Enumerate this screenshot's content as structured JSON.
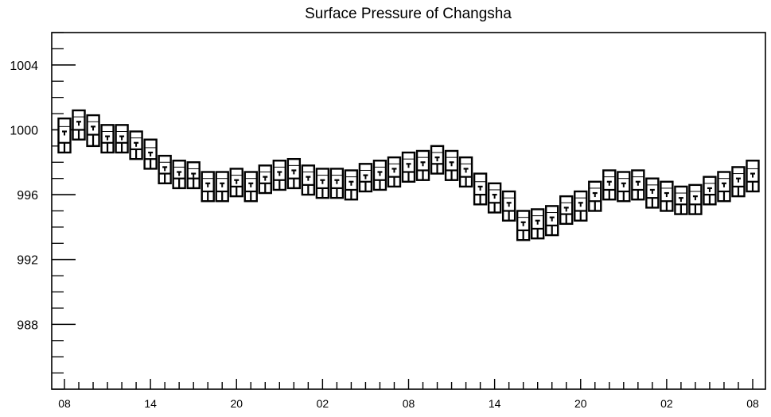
{
  "chart_data": {
    "type": "box",
    "title": "Surface Pressure of Changsha",
    "xlabel": "",
    "ylabel": "",
    "ylim": [
      984,
      1006
    ],
    "y_ticks": [
      988,
      992,
      996,
      1000,
      1004
    ],
    "x_tick_labels": [
      "08",
      "14",
      "20",
      "02",
      "08",
      "14",
      "20",
      "02",
      "08"
    ],
    "grid": false,
    "legend": "none",
    "colors": {
      "stroke": "#000000",
      "fill": "#ffffff",
      "background": "#ffffff"
    },
    "boxes": [
      {
        "x": 0,
        "min": 998.6,
        "q1": 999.2,
        "median": 999.9,
        "q3": 1000.2,
        "max": 1000.7
      },
      {
        "x": 1,
        "min": 999.4,
        "q1": 1000.0,
        "median": 1000.5,
        "q3": 1000.8,
        "max": 1001.2
      },
      {
        "x": 2,
        "min": 999.0,
        "q1": 999.7,
        "median": 1000.2,
        "q3": 1000.5,
        "max": 1000.9
      },
      {
        "x": 3,
        "min": 998.6,
        "q1": 999.2,
        "median": 999.6,
        "q3": 999.9,
        "max": 1000.3
      },
      {
        "x": 4,
        "min": 998.6,
        "q1": 999.2,
        "median": 999.6,
        "q3": 999.9,
        "max": 1000.3
      },
      {
        "x": 5,
        "min": 998.2,
        "q1": 998.8,
        "median": 999.2,
        "q3": 999.5,
        "max": 999.9
      },
      {
        "x": 6,
        "min": 997.6,
        "q1": 998.2,
        "median": 998.6,
        "q3": 998.9,
        "max": 999.4
      },
      {
        "x": 7,
        "min": 996.7,
        "q1": 997.3,
        "median": 997.7,
        "q3": 998.0,
        "max": 998.4
      },
      {
        "x": 8,
        "min": 996.4,
        "q1": 997.0,
        "median": 997.4,
        "q3": 997.7,
        "max": 998.1
      },
      {
        "x": 9,
        "min": 996.4,
        "q1": 997.0,
        "median": 997.3,
        "q3": 997.6,
        "max": 998.0
      },
      {
        "x": 10,
        "min": 995.6,
        "q1": 996.2,
        "median": 996.7,
        "q3": 997.0,
        "max": 997.4
      },
      {
        "x": 11,
        "min": 995.6,
        "q1": 996.2,
        "median": 996.7,
        "q3": 997.0,
        "max": 997.4
      },
      {
        "x": 12,
        "min": 995.9,
        "q1": 996.5,
        "median": 996.9,
        "q3": 997.2,
        "max": 997.6
      },
      {
        "x": 13,
        "min": 995.6,
        "q1": 996.2,
        "median": 996.7,
        "q3": 997.0,
        "max": 997.4
      },
      {
        "x": 14,
        "min": 996.1,
        "q1": 996.7,
        "median": 997.1,
        "q3": 997.4,
        "max": 997.8
      },
      {
        "x": 15,
        "min": 996.3,
        "q1": 996.9,
        "median": 997.4,
        "q3": 997.7,
        "max": 998.1
      },
      {
        "x": 16,
        "min": 996.4,
        "q1": 997.0,
        "median": 997.5,
        "q3": 997.8,
        "max": 998.2
      },
      {
        "x": 17,
        "min": 996.0,
        "q1": 996.6,
        "median": 997.1,
        "q3": 997.4,
        "max": 997.8
      },
      {
        "x": 18,
        "min": 995.8,
        "q1": 996.4,
        "median": 996.9,
        "q3": 997.2,
        "max": 997.6
      },
      {
        "x": 19,
        "min": 995.8,
        "q1": 996.4,
        "median": 996.9,
        "q3": 997.2,
        "max": 997.6
      },
      {
        "x": 20,
        "min": 995.7,
        "q1": 996.3,
        "median": 996.8,
        "q3": 997.1,
        "max": 997.5
      },
      {
        "x": 21,
        "min": 996.2,
        "q1": 996.8,
        "median": 997.2,
        "q3": 997.5,
        "max": 997.9
      },
      {
        "x": 22,
        "min": 996.3,
        "q1": 996.9,
        "median": 997.4,
        "q3": 997.7,
        "max": 998.1
      },
      {
        "x": 23,
        "min": 996.5,
        "q1": 997.1,
        "median": 997.6,
        "q3": 997.9,
        "max": 998.3
      },
      {
        "x": 24,
        "min": 996.8,
        "q1": 997.4,
        "median": 997.9,
        "q3": 998.2,
        "max": 998.6
      },
      {
        "x": 25,
        "min": 996.9,
        "q1": 997.5,
        "median": 998.0,
        "q3": 998.3,
        "max": 998.7
      },
      {
        "x": 26,
        "min": 997.3,
        "q1": 997.9,
        "median": 998.3,
        "q3": 998.6,
        "max": 999.0
      },
      {
        "x": 27,
        "min": 996.9,
        "q1": 997.5,
        "median": 998.0,
        "q3": 998.3,
        "max": 998.7
      },
      {
        "x": 28,
        "min": 996.5,
        "q1": 997.1,
        "median": 997.6,
        "q3": 997.9,
        "max": 998.3
      },
      {
        "x": 29,
        "min": 995.4,
        "q1": 996.0,
        "median": 996.5,
        "q3": 996.8,
        "max": 997.3
      },
      {
        "x": 30,
        "min": 994.9,
        "q1": 995.5,
        "median": 996.0,
        "q3": 996.3,
        "max": 996.7
      },
      {
        "x": 31,
        "min": 994.4,
        "q1": 995.0,
        "median": 995.5,
        "q3": 995.8,
        "max": 996.2
      },
      {
        "x": 32,
        "min": 993.2,
        "q1": 993.8,
        "median": 994.3,
        "q3": 994.6,
        "max": 995.0
      },
      {
        "x": 33,
        "min": 993.3,
        "q1": 993.9,
        "median": 994.4,
        "q3": 994.7,
        "max": 995.1
      },
      {
        "x": 34,
        "min": 993.5,
        "q1": 994.1,
        "median": 994.6,
        "q3": 994.9,
        "max": 995.3
      },
      {
        "x": 35,
        "min": 994.2,
        "q1": 994.8,
        "median": 995.2,
        "q3": 995.5,
        "max": 995.9
      },
      {
        "x": 36,
        "min": 994.4,
        "q1": 995.0,
        "median": 995.5,
        "q3": 995.8,
        "max": 996.2
      },
      {
        "x": 37,
        "min": 995.0,
        "q1": 995.6,
        "median": 996.1,
        "q3": 996.4,
        "max": 996.8
      },
      {
        "x": 38,
        "min": 995.7,
        "q1": 996.3,
        "median": 996.8,
        "q3": 997.1,
        "max": 997.5
      },
      {
        "x": 39,
        "min": 995.6,
        "q1": 996.2,
        "median": 996.7,
        "q3": 997.0,
        "max": 997.4
      },
      {
        "x": 40,
        "min": 995.7,
        "q1": 996.3,
        "median": 996.8,
        "q3": 997.1,
        "max": 997.5
      },
      {
        "x": 41,
        "min": 995.2,
        "q1": 995.8,
        "median": 996.3,
        "q3": 996.6,
        "max": 997.0
      },
      {
        "x": 42,
        "min": 995.0,
        "q1": 995.6,
        "median": 996.1,
        "q3": 996.4,
        "max": 996.8
      },
      {
        "x": 43,
        "min": 994.8,
        "q1": 995.4,
        "median": 995.8,
        "q3": 996.1,
        "max": 996.5
      },
      {
        "x": 44,
        "min": 994.8,
        "q1": 995.4,
        "median": 995.9,
        "q3": 996.2,
        "max": 996.6
      },
      {
        "x": 45,
        "min": 995.4,
        "q1": 996.0,
        "median": 996.4,
        "q3": 996.7,
        "max": 997.1
      },
      {
        "x": 46,
        "min": 995.6,
        "q1": 996.2,
        "median": 996.7,
        "q3": 997.0,
        "max": 997.4
      },
      {
        "x": 47,
        "min": 995.9,
        "q1": 996.5,
        "median": 997.0,
        "q3": 997.3,
        "max": 997.7
      },
      {
        "x": 48,
        "min": 996.2,
        "q1": 996.8,
        "median": 997.3,
        "q3": 997.6,
        "max": 998.1
      }
    ]
  }
}
